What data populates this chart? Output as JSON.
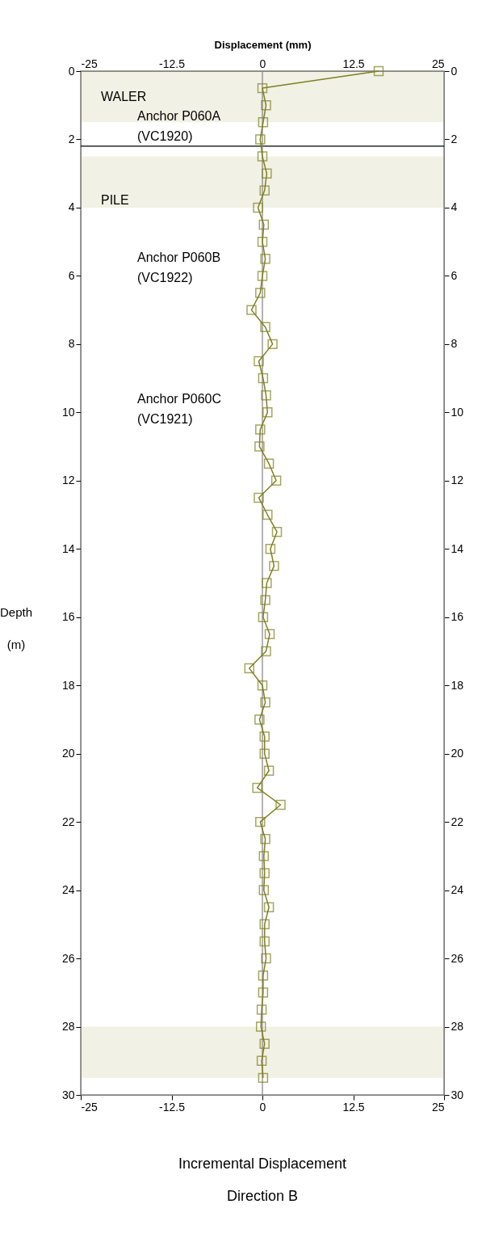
{
  "chart_data": {
    "type": "line",
    "orientation": "horizontal",
    "title": "Incremental Displacement",
    "subtitle": "Direction  B",
    "x2label": "Displacement (mm)",
    "ylabel": "Depth (m)",
    "xlim": [
      -25,
      25
    ],
    "xticks": [
      -25,
      -12.5,
      0,
      12.5,
      25
    ],
    "x2lim": [
      -25,
      25
    ],
    "x2ticks": [
      -25,
      -12.5,
      0,
      12.5,
      25
    ],
    "ylim": [
      30,
      0
    ],
    "yticks": [
      0,
      2,
      4,
      6,
      8,
      10,
      12,
      14,
      16,
      18,
      20,
      22,
      24,
      26,
      28,
      30
    ],
    "y2lim": [
      30,
      0
    ],
    "y2ticks": [
      0,
      2,
      4,
      6,
      8,
      10,
      12,
      14,
      16,
      18,
      20,
      22,
      24,
      26,
      28,
      30
    ],
    "x": [
      0,
      0.5,
      1,
      1.5,
      2,
      2.5,
      3,
      3.5,
      4,
      4.5,
      5,
      5.5,
      6,
      6.5,
      7,
      7.5,
      8,
      8.5,
      9,
      9.5,
      10,
      10.5,
      11,
      11.5,
      12,
      12.5,
      13,
      13.5,
      14,
      14.5,
      15,
      15.5,
      16,
      16.5,
      17,
      17.5,
      18,
      18.5,
      19,
      19.5,
      20,
      20.5,
      21,
      21.5,
      22,
      22.5,
      23,
      23.5,
      24,
      24.5,
      25,
      25.5,
      26,
      26.5,
      27,
      27.5,
      28,
      28.5,
      29,
      29.5
    ],
    "series": [
      {
        "color": "#808020",
        "values": [
          16,
          0,
          0.5,
          0.1,
          -0.3,
          0,
          0.6,
          0.3,
          -0.6,
          0.2,
          0,
          0.4,
          0,
          -0.3,
          -1.5,
          0.4,
          1.4,
          -0.5,
          0.1,
          0.5,
          0.7,
          -0.3,
          -0.4,
          0.9,
          1.9,
          -0.5,
          0.7,
          2,
          1.1,
          1.6,
          0.6,
          0.4,
          0.1,
          1,
          0.5,
          -1.8,
          0,
          0.4,
          -0.4,
          0.3,
          0.3,
          0.9,
          -0.7,
          2.5,
          -0.3,
          0.4,
          0.2,
          0.3,
          0.2,
          0.9,
          0.3,
          0.3,
          0.5,
          0.1,
          0.1,
          -0.1,
          -0.2,
          0.3,
          -0.1,
          0.1
        ]
      }
    ],
    "marker": "square",
    "line_style": "solid",
    "grid": false,
    "legend": false,
    "ref_lines": [
      {
        "axis": "y",
        "value": 2.2,
        "color": "#000000"
      },
      {
        "axis": "x",
        "value": 0,
        "color": "#808080"
      }
    ],
    "bands": [
      {
        "axis": "y",
        "from": 0,
        "to": 1.5,
        "color": "#a0a050"
      },
      {
        "axis": "y",
        "from": 2.5,
        "to": 4,
        "color": "#a0a050"
      },
      {
        "axis": "y",
        "from": 28,
        "to": 29.5,
        "color": "#a0a050"
      }
    ],
    "annotations": [
      "WALER",
      "Anchor P060A\n(VC1920)",
      "PILE",
      "Anchor P060B\n(VC1922)",
      "Anchor P060C\n(VC1921)"
    ]
  }
}
